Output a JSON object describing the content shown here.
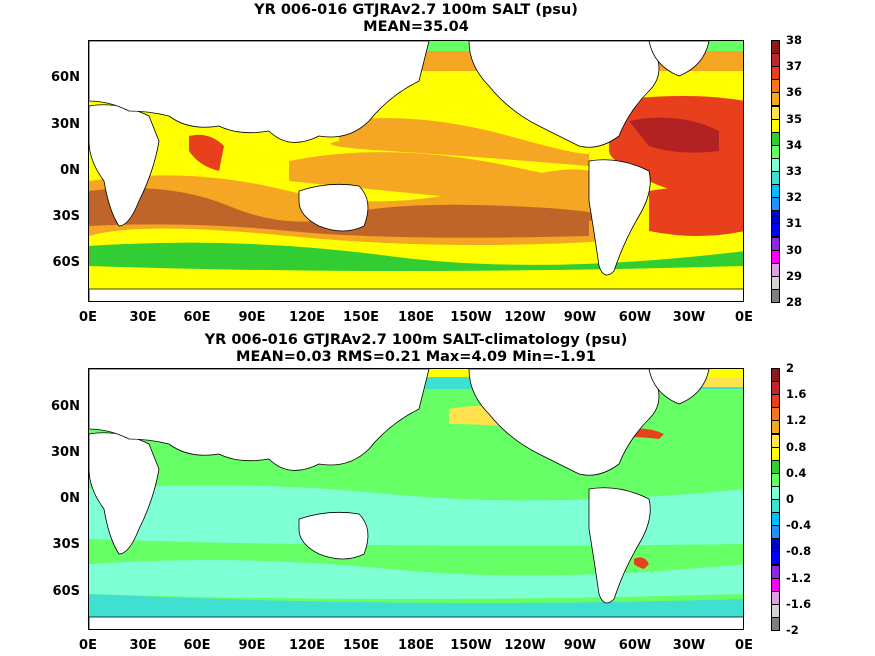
{
  "panels": [
    {
      "title_line1": "YR 006-016 GTJRAv2.7 100m SALT (psu)",
      "title_line2": "MEAN=35.04",
      "ytick_labels": [
        "60N",
        "30N",
        "0N",
        "30S",
        "60S"
      ],
      "xtick_labels": [
        "0E",
        "30E",
        "60E",
        "90E",
        "120E",
        "150E",
        "180E",
        "150W",
        "120W",
        "90W",
        "60W",
        "30W",
        "0E"
      ],
      "colorbar_labels": [
        "38",
        "37",
        "36",
        "35",
        "34",
        "33",
        "32",
        "31",
        "30",
        "29",
        "28"
      ],
      "colorbar_colors": [
        "#8b1a1a",
        "#c0272d",
        "#e8401c",
        "#f7741f",
        "#f5a623",
        "#ffe34d",
        "#ffff00",
        "#32cd32",
        "#66ff66",
        "#7fffd4",
        "#40e0d0",
        "#00bfff",
        "#1e90ff",
        "#0000cd",
        "#0000ff",
        "#8a2be2",
        "#ff00ff",
        "#dda0dd",
        "#d3d3d3",
        "#808080"
      ]
    },
    {
      "title_line1": "YR 006-016 GTJRAv2.7 100m SALT-climatology (psu)",
      "title_line2": "MEAN=0.03   RMS=0.21   Max=4.09   Min=-1.91",
      "ytick_labels": [
        "60N",
        "30N",
        "0N",
        "30S",
        "60S"
      ],
      "xtick_labels": [
        "0E",
        "30E",
        "60E",
        "90E",
        "120E",
        "150E",
        "180E",
        "150W",
        "120W",
        "90W",
        "60W",
        "30W",
        "0E"
      ],
      "colorbar_labels": [
        "2",
        "1.6",
        "1.2",
        "0.8",
        "0.4",
        "0",
        "-0.4",
        "-0.8",
        "-1.2",
        "-1.6",
        "-2"
      ],
      "colorbar_colors": [
        "#8b1a1a",
        "#c0272d",
        "#e8401c",
        "#f7741f",
        "#f5a623",
        "#ffe34d",
        "#ffff00",
        "#32cd32",
        "#66ff66",
        "#7fffd4",
        "#40e0d0",
        "#00bfff",
        "#1e90ff",
        "#0000cd",
        "#0000ff",
        "#8a2be2",
        "#ff00ff",
        "#dda0dd",
        "#d3d3d3",
        "#808080"
      ]
    }
  ]
}
